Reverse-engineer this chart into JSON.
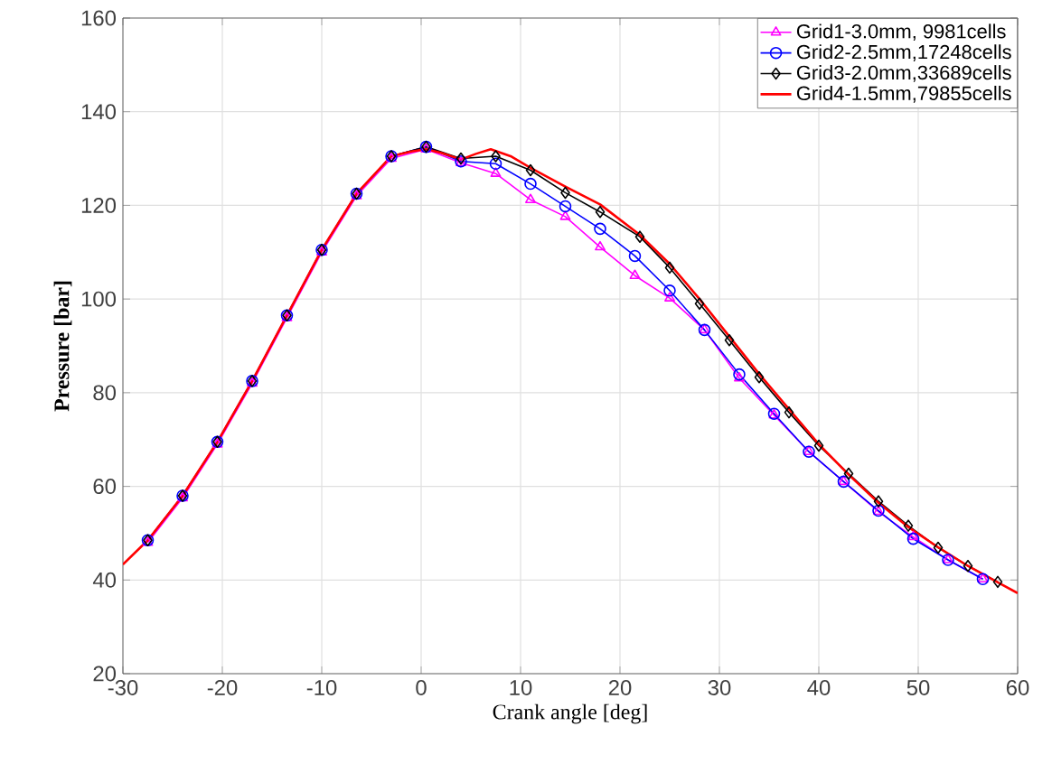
{
  "chart_data": {
    "type": "line",
    "xlabel": "Crank angle [deg]",
    "ylabel": "Pressure [bar]",
    "xlim": [
      -30,
      60
    ],
    "xticks": [
      -30,
      -20,
      -10,
      0,
      10,
      20,
      30,
      40,
      50,
      60
    ],
    "ylim": [
      20,
      160
    ],
    "yticks": [
      20,
      40,
      60,
      80,
      100,
      120,
      140,
      160
    ],
    "grid": true,
    "legend": "top right",
    "line_style": "solid",
    "series": [
      {
        "name": "Grid1-3.0mm, 9981cells",
        "color": "#ff00ff",
        "marker": "triangle",
        "x": [
          -27.5,
          -24,
          -20.5,
          -17,
          -13.5,
          -10,
          -6.5,
          -3,
          0.5,
          4,
          7.5,
          11,
          14.5,
          18,
          21.5,
          25,
          28.5,
          32,
          35.5,
          39,
          42.5,
          46,
          49.5,
          53,
          56.5
        ],
        "values": [
          48,
          57.5,
          69,
          82,
          96,
          110,
          122,
          130,
          132,
          129.1,
          126.8,
          121.2,
          117.6,
          111.1,
          105,
          100.2,
          93.4,
          83.1,
          75.2,
          67.4,
          61,
          54.6,
          49.2,
          44.3,
          40.2
        ]
      },
      {
        "name": "Grid2-2.5mm,17248cells",
        "color": "#0000ff",
        "marker": "circle",
        "x": [
          -27.5,
          -24,
          -20.5,
          -17,
          -13.5,
          -10,
          -6.5,
          -3,
          0.5,
          4,
          7.5,
          11,
          14.5,
          18,
          21.5,
          25,
          28.5,
          32,
          35.5,
          39,
          42.5,
          46,
          49.5,
          53,
          56.5
        ],
        "values": [
          48.5,
          58,
          69.5,
          82.5,
          96.5,
          110.5,
          122.5,
          130.5,
          132.5,
          129.4,
          128.9,
          124.6,
          119.8,
          115,
          109.2,
          101.8,
          93.4,
          83.9,
          75.5,
          67.4,
          61,
          54.8,
          48.8,
          44.3,
          40.2
        ]
      },
      {
        "name": "Grid3-2.0mm,33689cells",
        "color": "#000000",
        "marker": "diamond",
        "x": [
          -27.5,
          -24,
          -20.5,
          -17,
          -13.5,
          -10,
          -6.5,
          -3,
          0.5,
          4,
          7.5,
          11,
          14.5,
          18,
          22,
          25,
          28,
          31,
          34,
          37,
          40,
          43,
          46,
          49,
          52,
          55,
          58
        ],
        "values": [
          48.5,
          58,
          69.5,
          82.5,
          96.5,
          110.5,
          122.5,
          130.5,
          132.5,
          130,
          130.5,
          127.5,
          122.7,
          118.6,
          113.3,
          106.7,
          99,
          91.2,
          83.3,
          75.8,
          68.7,
          62.7,
          56.8,
          51.6,
          46.9,
          43,
          39.6
        ]
      },
      {
        "name": "Grid4-1.5mm,79855cells",
        "color": "#ff0000",
        "marker": "none",
        "x": [
          -30,
          -27.5,
          -24,
          -20.5,
          -17,
          -13.5,
          -10,
          -6.5,
          -3,
          -1,
          0.5,
          2,
          4,
          5.5,
          7,
          9,
          11,
          14.5,
          18,
          22,
          25,
          28,
          31,
          34,
          37,
          40,
          43,
          46,
          49,
          52,
          55,
          58,
          60
        ],
        "values": [
          43.3,
          48.5,
          58,
          69.5,
          82.5,
          96.5,
          110.5,
          122.5,
          130.5,
          131.5,
          132,
          131.2,
          129.8,
          131,
          132,
          130.5,
          128,
          124,
          120.2,
          113.7,
          107.5,
          100,
          92,
          84,
          76.5,
          69,
          62.5,
          56.5,
          51.3,
          47,
          43,
          39.5,
          37.2
        ]
      }
    ]
  }
}
